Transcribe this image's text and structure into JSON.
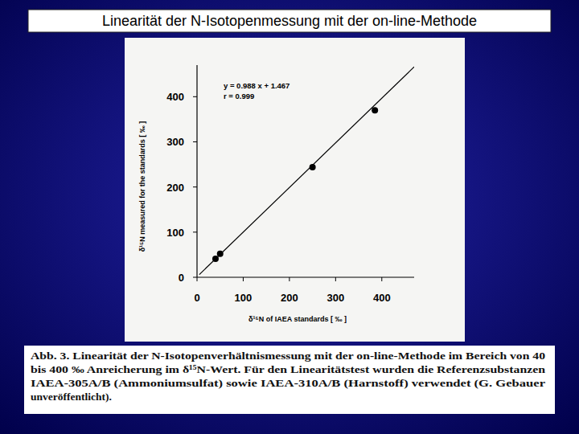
{
  "slide_title": "Linearität der N-Isotopenmessung mit der on-line-Methode",
  "caption": [
    "Abb. 3. Linearität der N-Isotopenverhältnismessung mit der on-line-Methode im Bereich von 40",
    "bis 400 ‰ Anreicherung im δ¹⁵N-Wert. Für den Linearitätstest wurden die Referenzsubstanzen",
    "IAEA-305A/B (Ammoniumsulfat) sowie IAEA-310A/B (Harnstoff) verwendet (G. Gebauer",
    "unveröffentlicht)."
  ],
  "chart_data": {
    "type": "scatter",
    "x_label": "δ¹⁵N of IAEA standards [ ‰ ]",
    "y_label": "δ¹⁵N measured for the standards [ ‰ ]",
    "annotations": [
      "y = 0.988 x + 1.467",
      "r = 0.999"
    ],
    "xlim": [
      0,
      470
    ],
    "ylim": [
      0,
      470
    ],
    "xticks": [
      0,
      100,
      200,
      300,
      400
    ],
    "yticks": [
      0,
      100,
      200,
      300,
      400
    ],
    "grid": false,
    "series": [
      {
        "type": "scatter",
        "marker": "circle",
        "color": "#000000",
        "x": [
          40,
          50,
          250,
          385
        ],
        "values": [
          41,
          52,
          244,
          370
        ]
      },
      {
        "type": "line",
        "line_style": "solid",
        "color": "#000000",
        "x": [
          5,
          470
        ],
        "values": [
          6,
          466
        ]
      }
    ]
  }
}
